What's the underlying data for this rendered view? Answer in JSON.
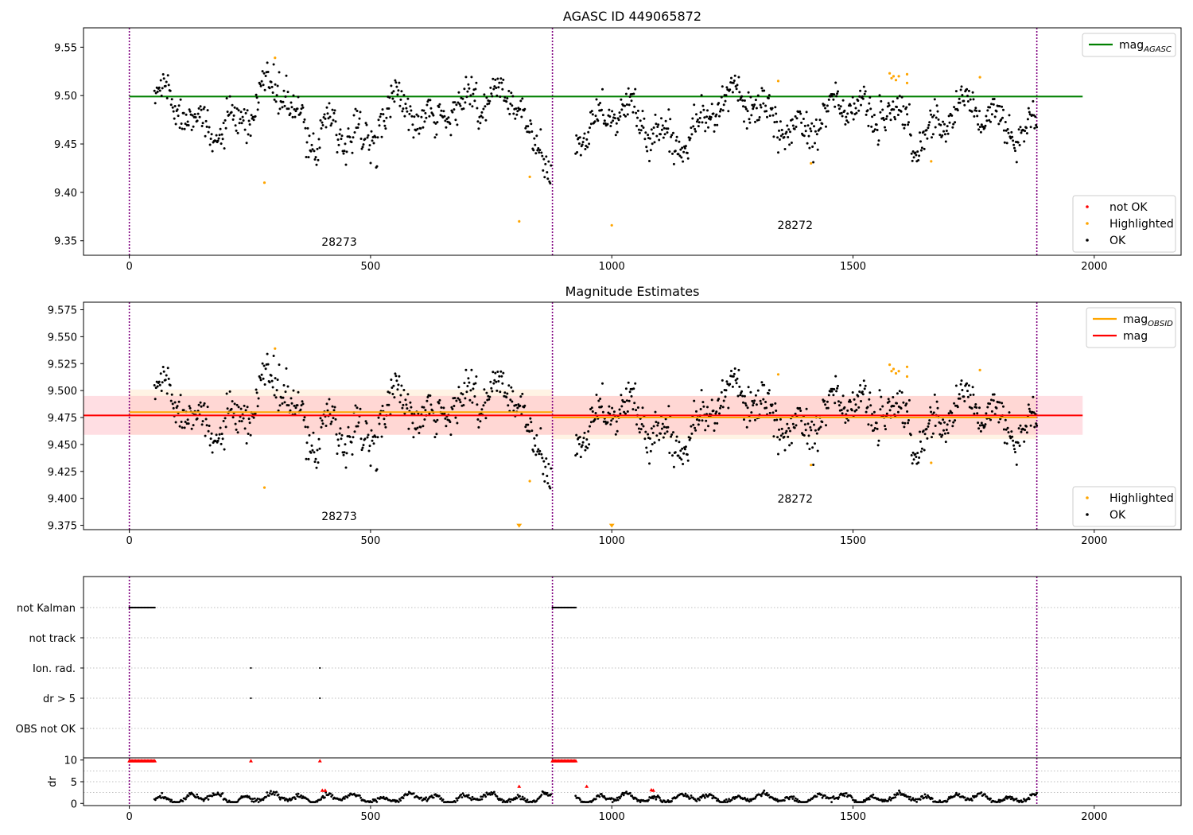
{
  "figure": {
    "title": "AGASC ID 449065872",
    "subtitle": "Magnitude Estimates"
  },
  "colors": {
    "ok": "#000000",
    "highlighted": "#ffa500",
    "not_ok": "#ff0000",
    "agasc_line": "#008000",
    "obsid_line": "#ffa500",
    "mag_line": "#ff0000",
    "obs_boundary": "#800080",
    "band_obsid": "#ffe4c4",
    "band_mag": "#ffb6c1"
  },
  "chart_data": [
    {
      "type": "scatter",
      "title": "AGASC ID 449065872",
      "xlim": [
        -95,
        2180
      ],
      "ylim": [
        9.335,
        9.57
      ],
      "xticks": [
        0,
        500,
        1000,
        1500,
        2000
      ],
      "yticks": [
        9.35,
        9.4,
        9.45,
        9.5,
        9.55
      ],
      "ytick_labels": [
        "9.35",
        "9.40",
        "9.45",
        "9.50",
        "9.55"
      ],
      "obs_boundaries": [
        0,
        877,
        1881
      ],
      "obsids": [
        {
          "label": "28273",
          "x": 435,
          "y": 9.345
        },
        {
          "label": "28272",
          "x": 1380,
          "y": 9.362
        }
      ],
      "hlines": [
        {
          "name": "mag_AGASC",
          "y": 9.499,
          "x_range": [
            0,
            1976
          ],
          "color": "#008000"
        }
      ],
      "legend_top": {
        "entries": [
          {
            "label": "mag",
            "sub": "AGASC",
            "color": "#008000"
          }
        ],
        "location": "upper right"
      },
      "legend_bottom": {
        "entries": [
          {
            "label": "not OK",
            "color": "#ff0000"
          },
          {
            "label": "Highlighted",
            "color": "#ffa500"
          },
          {
            "label": "OK",
            "color": "#000000"
          }
        ],
        "location": "lower right"
      },
      "series": [
        {
          "name": "OK",
          "color": "#000000",
          "generated_segments": [
            {
              "x_start": 52,
              "x_end": 874,
              "n": 500
            },
            {
              "x_start": 925,
              "x_end": 1881,
              "n": 620
            }
          ]
        },
        {
          "name": "Highlighted",
          "color": "#ffa500",
          "points": [
            [
              280,
              9.41
            ],
            [
              302,
              9.539
            ],
            [
              808,
              9.37
            ],
            [
              830,
              9.416
            ],
            [
              1000,
              9.366
            ],
            [
              1345,
              9.515
            ],
            [
              1413,
              9.43
            ],
            [
              1576,
              9.523
            ],
            [
              1580,
              9.518
            ],
            [
              1584,
              9.52
            ],
            [
              1589,
              9.516
            ],
            [
              1595,
              9.52
            ],
            [
              1612,
              9.522
            ],
            [
              1612,
              9.513
            ],
            [
              1662,
              9.432
            ],
            [
              1763,
              9.519
            ]
          ]
        }
      ]
    },
    {
      "type": "scatter",
      "title": "Magnitude Estimates",
      "xlim": [
        -95,
        2180
      ],
      "ylim": [
        9.371,
        9.582
      ],
      "xticks": [
        0,
        500,
        1000,
        1500,
        2000
      ],
      "yticks": [
        9.375,
        9.4,
        9.425,
        9.45,
        9.475,
        9.5,
        9.525,
        9.55,
        9.575
      ],
      "ytick_labels": [
        "9.375",
        "9.400",
        "9.425",
        "9.450",
        "9.475",
        "9.500",
        "9.525",
        "9.550",
        "9.575"
      ],
      "obs_boundaries": [
        0,
        877,
        1881
      ],
      "obsids": [
        {
          "label": "28273",
          "x": 435,
          "y": 9.38
        },
        {
          "label": "28272",
          "x": 1380,
          "y": 9.396
        }
      ],
      "bands": [
        {
          "name": "obsid-28273",
          "x_range": [
            0,
            877
          ],
          "y_range": [
            9.459,
            9.501
          ],
          "color": "#ffe4c4"
        },
        {
          "name": "obsid-28272",
          "x_range": [
            877,
            1881
          ],
          "y_range": [
            9.455,
            9.495
          ],
          "color": "#ffe4c4"
        },
        {
          "name": "mag",
          "x_range": [
            -95,
            1976
          ],
          "y_range": [
            9.459,
            9.495
          ],
          "color": "#ffb6c1"
        }
      ],
      "hlines": [
        {
          "name": "mag_OBSID-28273",
          "y": 9.48,
          "x_range": [
            0,
            877
          ],
          "color": "#ffa500"
        },
        {
          "name": "mag_OBSID-28272",
          "y": 9.475,
          "x_range": [
            877,
            1881
          ],
          "color": "#ffa500"
        },
        {
          "name": "mag",
          "y": 9.477,
          "x_range": [
            -95,
            1976
          ],
          "color": "#ff0000"
        }
      ],
      "legend_top": {
        "entries": [
          {
            "label": "mag",
            "sub": "OBSID",
            "color": "#ffa500"
          },
          {
            "label": "mag",
            "sub": "",
            "color": "#ff0000"
          }
        ],
        "location": "upper right"
      },
      "legend_bottom": {
        "entries": [
          {
            "label": "Highlighted",
            "color": "#ffa500"
          },
          {
            "label": "OK",
            "color": "#000000"
          }
        ],
        "location": "lower right"
      },
      "series": [
        {
          "name": "OK",
          "color": "#000000",
          "generated_segments": [
            {
              "x_start": 52,
              "x_end": 874,
              "n": 500
            },
            {
              "x_start": 925,
              "x_end": 1881,
              "n": 620
            }
          ]
        },
        {
          "name": "Highlighted",
          "color": "#ffa500",
          "points": [
            [
              280,
              9.41
            ],
            [
              302,
              9.539
            ],
            [
              830,
              9.416
            ],
            [
              1345,
              9.515
            ],
            [
              1413,
              9.431
            ],
            [
              1576,
              9.524
            ],
            [
              1580,
              9.518
            ],
            [
              1584,
              9.52
            ],
            [
              1589,
              9.516
            ],
            [
              1595,
              9.518
            ],
            [
              1612,
              9.522
            ],
            [
              1612,
              9.513
            ],
            [
              1662,
              9.433
            ],
            [
              1763,
              9.519
            ]
          ]
        },
        {
          "name": "Highlighted (below range)",
          "color": "#ffa500",
          "marker": "triangle-down",
          "points": [
            [
              808,
              9.375
            ],
            [
              1000,
              9.375
            ]
          ]
        }
      ]
    },
    {
      "type": "scatter",
      "title": "",
      "xlim": [
        -95,
        2180
      ],
      "categories": [
        "not Kalman",
        "not track",
        "Ion. rad.",
        "dr > 5",
        "OBS not OK"
      ],
      "flags": [
        {
          "category": "not Kalman",
          "ranges": [
            [
              0,
              55
            ],
            [
              877,
              927
            ]
          ]
        },
        {
          "category": "Ion. rad.",
          "points": [
            252,
            395
          ]
        },
        {
          "category": "dr > 5",
          "points": [
            252,
            395
          ]
        }
      ],
      "obs_boundaries": [
        0,
        877,
        1881
      ]
    },
    {
      "type": "scatter",
      "title": "",
      "ylabel": "dr",
      "xlim": [
        -95,
        2180
      ],
      "ylim": [
        -0.5,
        10.5
      ],
      "xticks": [
        0,
        500,
        1000,
        1500,
        2000
      ],
      "yticks": [
        0,
        5,
        10
      ],
      "obs_boundaries": [
        0,
        877,
        1881
      ],
      "series": [
        {
          "name": "OK",
          "color": "#000000",
          "generated_segments": [
            {
              "x_start": 52,
              "x_end": 874,
              "n": 420
            },
            {
              "x_start": 925,
              "x_end": 1881,
              "n": 500
            }
          ]
        },
        {
          "name": "not OK",
          "color": "#ff0000",
          "marker": "triangle-up",
          "points": [
            [
              252,
              9.8
            ],
            [
              395,
              9.8
            ],
            [
              400,
              3.0
            ],
            [
              406,
              3.0
            ],
            [
              808,
              3.9
            ],
            [
              948,
              3.9
            ],
            [
              1082,
              3.1
            ],
            [
              1086,
              3.0
            ]
          ],
          "ranges": [
            [
              0,
              55,
              9.8
            ],
            [
              877,
              927,
              9.8
            ]
          ]
        }
      ]
    }
  ]
}
